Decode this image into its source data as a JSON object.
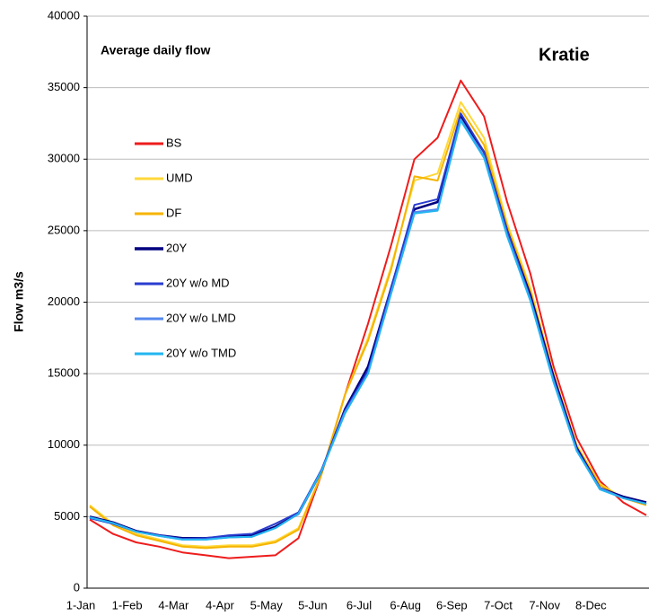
{
  "chart_data": {
    "type": "line",
    "title": "Average daily flow",
    "subtitle": "Kratie",
    "y_label": "Flow m3/s",
    "categories": [
      "1-Jan",
      null,
      "1-Feb",
      null,
      "4-Mar",
      null,
      "4-Apr",
      null,
      "5-May",
      null,
      "5-Jun",
      null,
      "6-Jul",
      null,
      "6-Aug",
      null,
      "6-Sep",
      null,
      "7-Oct",
      null,
      "7-Nov",
      null,
      "8-Dec",
      null,
      null
    ],
    "ylim": [
      0,
      40000
    ],
    "yticks": [
      0,
      5000,
      10000,
      15000,
      20000,
      25000,
      30000,
      35000,
      40000
    ],
    "grid": true,
    "legend": "upper left",
    "series": [
      {
        "name": "BS",
        "color": "#ee1c1c",
        "values": [
          4800,
          3800,
          3200,
          2900,
          2500,
          2300,
          2100,
          2200,
          2300,
          3500,
          8000,
          13500,
          18500,
          24000,
          30000,
          31500,
          35500,
          33000,
          27000,
          22000,
          15500,
          10500,
          7500,
          6000,
          5100
        ]
      },
      {
        "name": "UMD",
        "color": "#ffd83a",
        "values": [
          5800,
          4500,
          3800,
          3400,
          3000,
          2900,
          3000,
          3000,
          3300,
          4200,
          8000,
          13500,
          17500,
          22500,
          28500,
          29000,
          34000,
          31500,
          25500,
          21000,
          15000,
          10000,
          7300,
          6300,
          5900
        ]
      },
      {
        "name": "DF",
        "color": "#f5b400",
        "values": [
          5700,
          4400,
          3700,
          3300,
          2900,
          2800,
          2900,
          2900,
          3200,
          4100,
          8000,
          13500,
          17300,
          22300,
          28800,
          28500,
          33500,
          31000,
          25300,
          20800,
          14800,
          9900,
          7200,
          6300,
          5800
        ]
      },
      {
        "name": "20Y",
        "color": "#000080",
        "values": [
          5000,
          4600,
          4000,
          3700,
          3500,
          3500,
          3600,
          3700,
          4300,
          5200,
          8200,
          12500,
          15500,
          21000,
          26500,
          27000,
          33000,
          30500,
          25000,
          20500,
          14800,
          9800,
          7000,
          6400,
          6000
        ]
      },
      {
        "name": "20Y w/o MD",
        "color": "#2a3ccf",
        "values": [
          4900,
          4500,
          3950,
          3700,
          3450,
          3500,
          3700,
          3800,
          4500,
          5300,
          8300,
          12400,
          15200,
          21000,
          26800,
          27200,
          33200,
          30500,
          25000,
          20300,
          14600,
          9700,
          7000,
          6300,
          5900
        ]
      },
      {
        "name": "20Y w/o LMD",
        "color": "#5588ee",
        "values": [
          4950,
          4550,
          3950,
          3650,
          3400,
          3400,
          3550,
          3600,
          4200,
          5200,
          8200,
          12300,
          15000,
          20700,
          26300,
          26500,
          32800,
          30200,
          24700,
          20200,
          14500,
          9600,
          7000,
          6300,
          5900
        ]
      },
      {
        "name": "20Y w/o TMD",
        "color": "#22b5f0",
        "values": [
          4950,
          4550,
          3950,
          3650,
          3400,
          3400,
          3550,
          3600,
          4200,
          5200,
          8200,
          12200,
          15000,
          20600,
          26200,
          26400,
          32700,
          30100,
          24600,
          20100,
          14400,
          9600,
          6900,
          6300,
          5900
        ]
      }
    ]
  }
}
